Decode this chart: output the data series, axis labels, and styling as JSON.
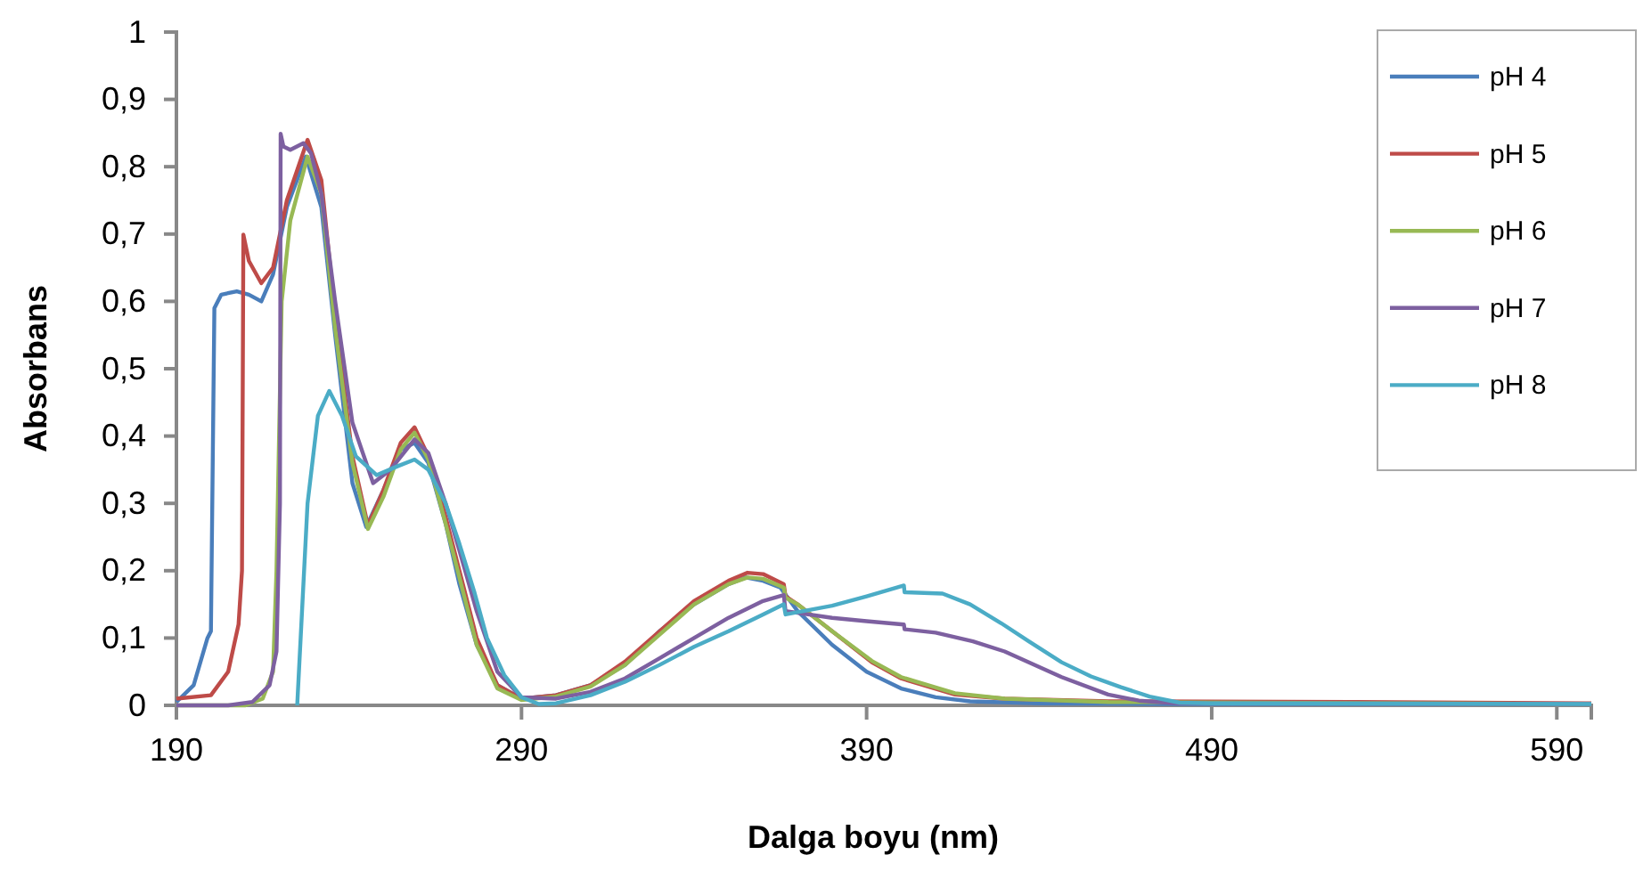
{
  "chart_data": {
    "type": "line",
    "xlabel": "Dalga boyu (nm)",
    "ylabel": "Absorbans",
    "xlim": [
      190,
      600
    ],
    "xticks": [
      190,
      290,
      390,
      490,
      590
    ],
    "ylim": [
      0,
      1
    ],
    "yticks": [
      {
        "value": 0,
        "label": "0"
      },
      {
        "value": 0.1,
        "label": "0,1"
      },
      {
        "value": 0.2,
        "label": "0,2"
      },
      {
        "value": 0.3,
        "label": "0,3"
      },
      {
        "value": 0.4,
        "label": "0,4"
      },
      {
        "value": 0.5,
        "label": "0,5"
      },
      {
        "value": 0.6,
        "label": "0,6"
      },
      {
        "value": 0.7,
        "label": "0,7"
      },
      {
        "value": 0.8,
        "label": "0,8"
      },
      {
        "value": 0.9,
        "label": "0,9"
      },
      {
        "value": 1,
        "label": "1"
      }
    ],
    "grid": false,
    "legend": "top right",
    "marker": "none",
    "line_style": "solid",
    "series": [
      {
        "name": "pH 4",
        "color": "#4a7ebb",
        "x": [
          190,
          195,
          199,
          200,
          201,
          203,
          207.5,
          211,
          214.6,
          218,
          222,
          227.5,
          232,
          236,
          241,
          245,
          250,
          255,
          259,
          263,
          268,
          272,
          277,
          283,
          290,
          300,
          310,
          320,
          330,
          340,
          350,
          355,
          360,
          365,
          370,
          380,
          390,
          400,
          410,
          420,
          440,
          480,
          600
        ],
        "values": [
          0.005,
          0.03,
          0.1,
          0.11,
          0.59,
          0.61,
          0.615,
          0.61,
          0.6,
          0.64,
          0.74,
          0.815,
          0.74,
          0.55,
          0.33,
          0.265,
          0.32,
          0.38,
          0.39,
          0.36,
          0.27,
          0.18,
          0.09,
          0.03,
          0.01,
          0.015,
          0.03,
          0.06,
          0.11,
          0.15,
          0.18,
          0.19,
          0.185,
          0.175,
          0.14,
          0.09,
          0.05,
          0.025,
          0.012,
          0.006,
          0.003,
          0.002,
          0.002
        ]
      },
      {
        "name": "pH 5",
        "color": "#be4b48",
        "x": [
          190,
          200,
          205,
          208,
          209,
          209.4,
          211,
          214.6,
          218,
          222,
          228,
          232,
          236,
          241,
          245.5,
          250,
          255,
          259,
          263,
          268,
          272,
          277,
          283,
          290,
          300,
          310,
          320,
          330,
          340,
          350,
          355.5,
          360,
          366,
          366.5,
          370,
          380,
          391.5,
          400,
          415.6,
          430,
          460,
          530,
          600
        ],
        "values": [
          0.01,
          0.015,
          0.05,
          0.12,
          0.2,
          0.699,
          0.66,
          0.627,
          0.65,
          0.75,
          0.84,
          0.78,
          0.58,
          0.37,
          0.267,
          0.32,
          0.39,
          0.413,
          0.37,
          0.28,
          0.2,
          0.1,
          0.03,
          0.01,
          0.015,
          0.03,
          0.065,
          0.11,
          0.155,
          0.185,
          0.197,
          0.195,
          0.18,
          0.162,
          0.15,
          0.11,
          0.064,
          0.04,
          0.016,
          0.01,
          0.006,
          0.005,
          0.003
        ]
      },
      {
        "name": "pH 6",
        "color": "#98b954",
        "x": [
          190,
          210,
          215,
          218,
          219,
          220.5,
          223,
          228,
          232,
          236,
          241,
          245.5,
          250,
          255,
          259,
          263,
          268,
          272,
          277,
          283,
          290,
          300,
          310,
          320,
          330,
          340,
          350,
          355.5,
          360,
          366,
          366.5,
          370,
          380,
          391.5,
          400,
          415.6,
          430,
          460,
          600
        ],
        "values": [
          0,
          0,
          0.01,
          0.05,
          0.2,
          0.6,
          0.72,
          0.815,
          0.76,
          0.56,
          0.36,
          0.262,
          0.31,
          0.38,
          0.405,
          0.365,
          0.27,
          0.19,
          0.09,
          0.025,
          0.008,
          0.013,
          0.028,
          0.06,
          0.105,
          0.15,
          0.18,
          0.19,
          0.188,
          0.175,
          0.16,
          0.15,
          0.11,
          0.066,
          0.042,
          0.018,
          0.01,
          0.005,
          0.002
        ]
      },
      {
        "name": "pH 7",
        "color": "#7d60a0",
        "x": [
          190,
          205,
          212,
          217,
          219,
          220,
          220.2,
          221,
          223,
          226.8,
          229,
          232,
          236,
          241,
          247,
          252,
          259,
          263,
          268,
          272,
          277,
          283,
          290,
          300,
          310,
          320,
          330,
          340,
          350,
          360,
          366,
          366.5,
          380,
          390,
          400.8,
          401,
          410,
          420.8,
          430,
          446.5,
          460,
          468.9,
          480,
          600
        ],
        "values": [
          0,
          0,
          0.005,
          0.03,
          0.08,
          0.3,
          0.849,
          0.83,
          0.825,
          0.835,
          0.82,
          0.76,
          0.6,
          0.42,
          0.33,
          0.35,
          0.395,
          0.375,
          0.3,
          0.23,
          0.14,
          0.05,
          0.012,
          0.01,
          0.02,
          0.04,
          0.07,
          0.1,
          0.13,
          0.155,
          0.164,
          0.14,
          0.13,
          0.125,
          0.12,
          0.113,
          0.108,
          0.095,
          0.08,
          0.042,
          0.016,
          0.007,
          0.003,
          0.002
        ]
      },
      {
        "name": "pH 8",
        "color": "#4bacc6",
        "x": [
          225,
          226,
          228,
          231,
          234.3,
          238,
          242,
          248,
          254,
          259,
          263,
          268,
          272,
          276.4,
          280,
          285,
          290,
          295,
          300,
          310,
          320,
          330,
          340,
          350,
          360,
          366,
          366.5,
          380,
          390,
          400.8,
          401,
          412,
          420,
          429,
          437,
          446.5,
          455,
          463.7,
          472,
          480.7,
          490,
          600
        ],
        "values": [
          0,
          0.1,
          0.3,
          0.43,
          0.467,
          0.43,
          0.37,
          0.342,
          0.355,
          0.365,
          0.35,
          0.3,
          0.24,
          0.167,
          0.1,
          0.045,
          0.012,
          0.002,
          0.003,
          0.015,
          0.035,
          0.06,
          0.087,
          0.11,
          0.135,
          0.15,
          0.135,
          0.148,
          0.162,
          0.178,
          0.168,
          0.166,
          0.15,
          0.122,
          0.095,
          0.064,
          0.043,
          0.027,
          0.013,
          0.004,
          0.003,
          0.002
        ]
      }
    ]
  }
}
